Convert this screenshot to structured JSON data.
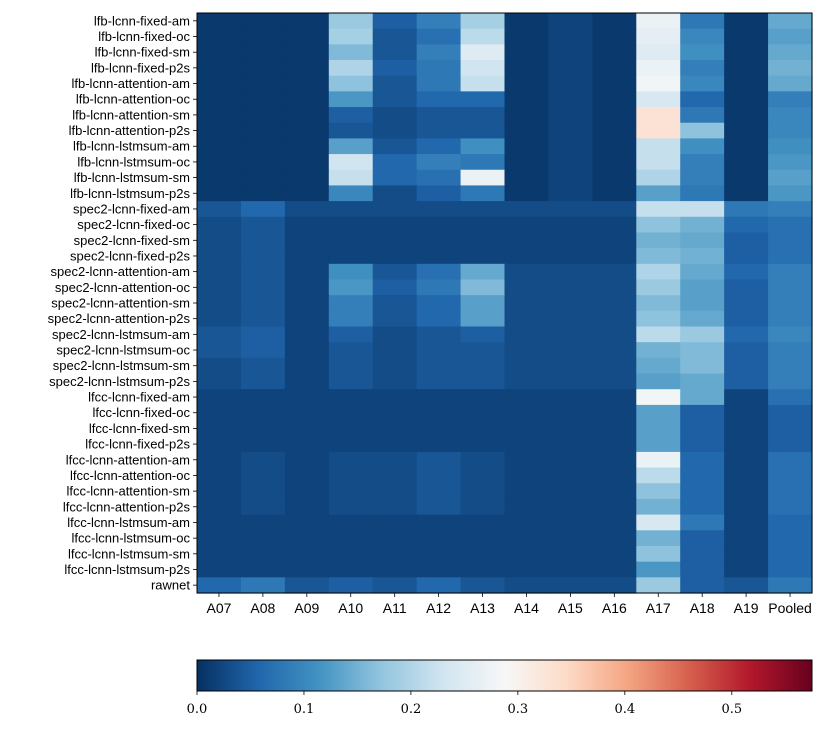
{
  "chart_data": {
    "type": "heatmap",
    "title": "",
    "xlabel": "",
    "ylabel": "",
    "colormap": "RdBu_r",
    "colorbar": {
      "range": [
        0.0,
        0.575
      ],
      "tick_values": [
        0.0,
        0.1,
        0.2,
        0.3,
        0.4,
        0.5
      ],
      "tick_labels": [
        "0.0",
        "0.1",
        "0.2",
        "0.3",
        "0.4",
        "0.5"
      ],
      "orientation": "horizontal",
      "placement": "bottom"
    },
    "columns": [
      "A07",
      "A08",
      "A09",
      "A10",
      "A11",
      "A12",
      "A13",
      "A14",
      "A15",
      "A16",
      "A17",
      "A18",
      "A19",
      "Pooled"
    ],
    "rows": [
      "lfb-lcnn-fixed-am",
      "lfb-lcnn-fixed-oc",
      "lfb-lcnn-fixed-sm",
      "lfb-lcnn-fixed-p2s",
      "lfb-lcnn-attention-am",
      "lfb-lcnn-attention-oc",
      "lfb-lcnn-attention-sm",
      "lfb-lcnn-attention-p2s",
      "lfb-lcnn-lstmsum-am",
      "lfb-lcnn-lstmsum-oc",
      "lfb-lcnn-lstmsum-sm",
      "lfb-lcnn-lstmsum-p2s",
      "spec2-lcnn-fixed-am",
      "spec2-lcnn-fixed-oc",
      "spec2-lcnn-fixed-sm",
      "spec2-lcnn-fixed-p2s",
      "spec2-lcnn-attention-am",
      "spec2-lcnn-attention-oc",
      "spec2-lcnn-attention-sm",
      "spec2-lcnn-attention-p2s",
      "spec2-lcnn-lstmsum-am",
      "spec2-lcnn-lstmsum-oc",
      "spec2-lcnn-lstmsum-sm",
      "spec2-lcnn-lstmsum-p2s",
      "lfcc-lcnn-fixed-am",
      "lfcc-lcnn-fixed-oc",
      "lfcc-lcnn-fixed-sm",
      "lfcc-lcnn-fixed-p2s",
      "lfcc-lcnn-attention-am",
      "lfcc-lcnn-attention-oc",
      "lfcc-lcnn-attention-sm",
      "lfcc-lcnn-attention-p2s",
      "lfcc-lcnn-lstmsum-am",
      "lfcc-lcnn-lstmsum-oc",
      "lfcc-lcnn-lstmsum-sm",
      "lfcc-lcnn-lstmsum-p2s",
      "rawnet"
    ],
    "values": [
      [
        0.01,
        0.01,
        0.01,
        0.18,
        0.05,
        0.09,
        0.19,
        0.01,
        0.02,
        0.01,
        0.27,
        0.08,
        0.01,
        0.14
      ],
      [
        0.01,
        0.01,
        0.01,
        0.19,
        0.04,
        0.07,
        0.21,
        0.01,
        0.02,
        0.01,
        0.26,
        0.1,
        0.01,
        0.13
      ],
      [
        0.01,
        0.01,
        0.01,
        0.16,
        0.04,
        0.09,
        0.25,
        0.01,
        0.02,
        0.01,
        0.25,
        0.11,
        0.01,
        0.14
      ],
      [
        0.01,
        0.01,
        0.01,
        0.2,
        0.05,
        0.08,
        0.23,
        0.01,
        0.02,
        0.01,
        0.27,
        0.09,
        0.01,
        0.15
      ],
      [
        0.01,
        0.01,
        0.01,
        0.17,
        0.04,
        0.08,
        0.22,
        0.01,
        0.02,
        0.01,
        0.28,
        0.1,
        0.01,
        0.14
      ],
      [
        0.01,
        0.01,
        0.01,
        0.12,
        0.04,
        0.06,
        0.06,
        0.01,
        0.02,
        0.01,
        0.24,
        0.06,
        0.01,
        0.09
      ],
      [
        0.01,
        0.01,
        0.01,
        0.05,
        0.03,
        0.04,
        0.04,
        0.01,
        0.02,
        0.01,
        0.33,
        0.08,
        0.01,
        0.1
      ],
      [
        0.01,
        0.01,
        0.01,
        0.04,
        0.03,
        0.04,
        0.04,
        0.01,
        0.02,
        0.01,
        0.33,
        0.17,
        0.01,
        0.1
      ],
      [
        0.01,
        0.01,
        0.01,
        0.13,
        0.04,
        0.06,
        0.11,
        0.01,
        0.02,
        0.01,
        0.22,
        0.11,
        0.01,
        0.11
      ],
      [
        0.01,
        0.01,
        0.01,
        0.23,
        0.06,
        0.09,
        0.08,
        0.01,
        0.02,
        0.01,
        0.22,
        0.09,
        0.01,
        0.12
      ],
      [
        0.01,
        0.01,
        0.01,
        0.22,
        0.06,
        0.07,
        0.27,
        0.01,
        0.02,
        0.01,
        0.2,
        0.09,
        0.01,
        0.13
      ],
      [
        0.01,
        0.01,
        0.01,
        0.1,
        0.03,
        0.05,
        0.08,
        0.01,
        0.02,
        0.01,
        0.13,
        0.08,
        0.01,
        0.12
      ],
      [
        0.04,
        0.06,
        0.03,
        0.03,
        0.03,
        0.03,
        0.03,
        0.03,
        0.03,
        0.03,
        0.22,
        0.22,
        0.08,
        0.09
      ],
      [
        0.03,
        0.04,
        0.02,
        0.02,
        0.02,
        0.02,
        0.02,
        0.02,
        0.02,
        0.02,
        0.17,
        0.15,
        0.06,
        0.07
      ],
      [
        0.03,
        0.04,
        0.02,
        0.02,
        0.02,
        0.02,
        0.02,
        0.02,
        0.02,
        0.02,
        0.15,
        0.14,
        0.05,
        0.07
      ],
      [
        0.03,
        0.04,
        0.02,
        0.02,
        0.02,
        0.02,
        0.02,
        0.02,
        0.02,
        0.02,
        0.16,
        0.15,
        0.05,
        0.07
      ],
      [
        0.03,
        0.04,
        0.02,
        0.11,
        0.04,
        0.07,
        0.14,
        0.03,
        0.03,
        0.03,
        0.2,
        0.14,
        0.06,
        0.09
      ],
      [
        0.03,
        0.04,
        0.02,
        0.12,
        0.05,
        0.08,
        0.16,
        0.03,
        0.03,
        0.03,
        0.18,
        0.13,
        0.05,
        0.09
      ],
      [
        0.03,
        0.04,
        0.02,
        0.09,
        0.04,
        0.06,
        0.13,
        0.03,
        0.03,
        0.03,
        0.16,
        0.13,
        0.05,
        0.09
      ],
      [
        0.03,
        0.04,
        0.02,
        0.09,
        0.04,
        0.06,
        0.13,
        0.03,
        0.03,
        0.03,
        0.17,
        0.14,
        0.05,
        0.09
      ],
      [
        0.04,
        0.05,
        0.02,
        0.05,
        0.03,
        0.04,
        0.05,
        0.03,
        0.03,
        0.03,
        0.21,
        0.18,
        0.06,
        0.1
      ],
      [
        0.04,
        0.05,
        0.02,
        0.04,
        0.03,
        0.04,
        0.04,
        0.03,
        0.03,
        0.03,
        0.15,
        0.16,
        0.05,
        0.09
      ],
      [
        0.03,
        0.04,
        0.02,
        0.04,
        0.03,
        0.04,
        0.04,
        0.03,
        0.03,
        0.03,
        0.14,
        0.16,
        0.05,
        0.09
      ],
      [
        0.03,
        0.04,
        0.02,
        0.04,
        0.03,
        0.04,
        0.04,
        0.03,
        0.03,
        0.03,
        0.13,
        0.14,
        0.05,
        0.09
      ],
      [
        0.02,
        0.02,
        0.02,
        0.02,
        0.02,
        0.02,
        0.02,
        0.02,
        0.02,
        0.02,
        0.28,
        0.14,
        0.02,
        0.07
      ],
      [
        0.02,
        0.02,
        0.02,
        0.02,
        0.02,
        0.02,
        0.02,
        0.02,
        0.02,
        0.02,
        0.13,
        0.05,
        0.02,
        0.05
      ],
      [
        0.02,
        0.02,
        0.02,
        0.02,
        0.02,
        0.02,
        0.02,
        0.02,
        0.02,
        0.02,
        0.13,
        0.05,
        0.02,
        0.05
      ],
      [
        0.02,
        0.02,
        0.02,
        0.02,
        0.02,
        0.02,
        0.02,
        0.02,
        0.02,
        0.02,
        0.13,
        0.05,
        0.02,
        0.05
      ],
      [
        0.02,
        0.03,
        0.02,
        0.03,
        0.03,
        0.04,
        0.03,
        0.02,
        0.02,
        0.02,
        0.27,
        0.06,
        0.02,
        0.07
      ],
      [
        0.02,
        0.03,
        0.02,
        0.03,
        0.03,
        0.04,
        0.03,
        0.02,
        0.02,
        0.02,
        0.21,
        0.06,
        0.02,
        0.07
      ],
      [
        0.02,
        0.03,
        0.02,
        0.03,
        0.03,
        0.04,
        0.03,
        0.02,
        0.02,
        0.02,
        0.17,
        0.06,
        0.02,
        0.07
      ],
      [
        0.02,
        0.03,
        0.02,
        0.03,
        0.03,
        0.04,
        0.03,
        0.02,
        0.02,
        0.02,
        0.15,
        0.06,
        0.02,
        0.07
      ],
      [
        0.02,
        0.02,
        0.02,
        0.02,
        0.02,
        0.02,
        0.02,
        0.02,
        0.02,
        0.02,
        0.24,
        0.08,
        0.02,
        0.06
      ],
      [
        0.02,
        0.02,
        0.02,
        0.02,
        0.02,
        0.02,
        0.02,
        0.02,
        0.02,
        0.02,
        0.15,
        0.05,
        0.02,
        0.06
      ],
      [
        0.02,
        0.02,
        0.02,
        0.02,
        0.02,
        0.02,
        0.02,
        0.02,
        0.02,
        0.02,
        0.17,
        0.05,
        0.02,
        0.06
      ],
      [
        0.02,
        0.02,
        0.02,
        0.02,
        0.02,
        0.02,
        0.02,
        0.02,
        0.02,
        0.02,
        0.12,
        0.05,
        0.02,
        0.06
      ],
      [
        0.06,
        0.08,
        0.04,
        0.05,
        0.04,
        0.06,
        0.04,
        0.03,
        0.03,
        0.03,
        0.18,
        0.05,
        0.04,
        0.08
      ]
    ]
  }
}
